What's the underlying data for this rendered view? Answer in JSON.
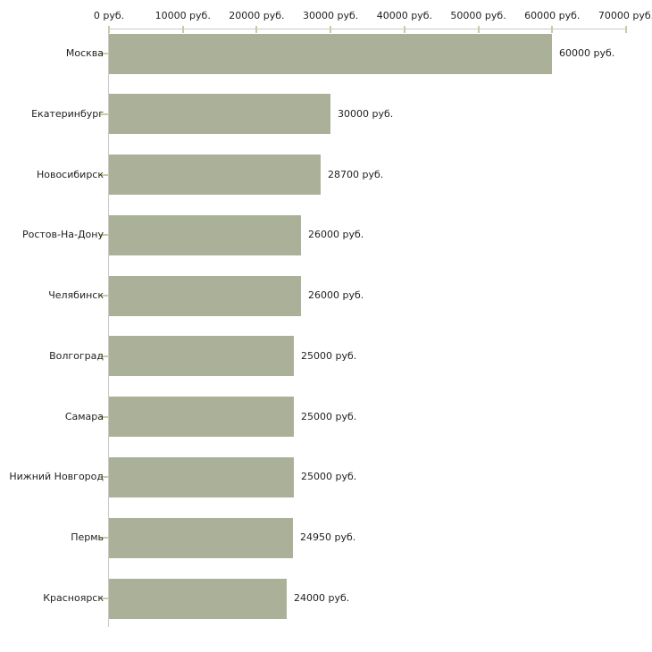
{
  "chart_data": {
    "type": "bar",
    "orientation": "horizontal",
    "currency_suffix": " руб.",
    "categories": [
      "Москва",
      "Екатеринбург",
      "Новосибирск",
      "Ростов-На-Дону",
      "Челябинск",
      "Волгоград",
      "Самара",
      "Нижний Новгород",
      "Пермь",
      "Красноярск"
    ],
    "values": [
      60000,
      30000,
      28700,
      26000,
      26000,
      25000,
      25000,
      25000,
      24950,
      24000
    ],
    "value_labels": [
      "60000 руб.",
      "30000 руб.",
      "28700 руб.",
      "26000 руб.",
      "26000 руб.",
      "25000 руб.",
      "25000 руб.",
      "25000 руб.",
      "24950 руб.",
      "24000 руб."
    ],
    "x_axis": {
      "min": 0,
      "max": 70000,
      "tick_values": [
        0,
        10000,
        20000,
        30000,
        40000,
        50000,
        60000,
        70000
      ],
      "tick_labels": [
        "0 руб.",
        "10000 руб.",
        "20000 руб.",
        "30000 руб.",
        "40000 руб.",
        "50000 руб.",
        "60000 руб.",
        "70000 руб."
      ],
      "position": "top"
    },
    "grid": false,
    "legend": false,
    "colors": {
      "bar_fill": "#abb198",
      "axis_line": "#c9c9c9",
      "tick_mark": "#cbcba2",
      "text": "#1f1f1f",
      "background": "#ffffff"
    }
  }
}
